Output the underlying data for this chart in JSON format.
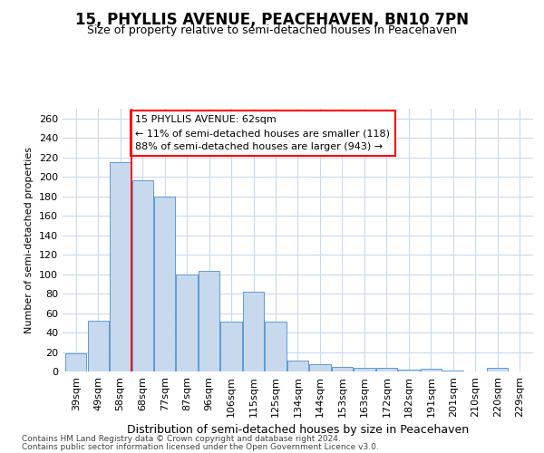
{
  "title": "15, PHYLLIS AVENUE, PEACEHAVEN, BN10 7PN",
  "subtitle": "Size of property relative to semi-detached houses in Peacehaven",
  "xlabel": "Distribution of semi-detached houses by size in Peacehaven",
  "ylabel": "Number of semi-detached properties",
  "footnote1": "Contains HM Land Registry data © Crown copyright and database right 2024.",
  "footnote2": "Contains public sector information licensed under the Open Government Licence v3.0.",
  "categories": [
    "39sqm",
    "49sqm",
    "58sqm",
    "68sqm",
    "77sqm",
    "87sqm",
    "96sqm",
    "106sqm",
    "115sqm",
    "125sqm",
    "134sqm",
    "144sqm",
    "153sqm",
    "163sqm",
    "172sqm",
    "182sqm",
    "191sqm",
    "201sqm",
    "210sqm",
    "220sqm",
    "229sqm"
  ],
  "values": [
    19,
    52,
    215,
    196,
    180,
    100,
    103,
    51,
    82,
    51,
    11,
    7,
    5,
    4,
    4,
    2,
    3,
    1,
    0,
    4,
    0
  ],
  "bar_color": "#c8d9ee",
  "bar_edge_color": "#5b9bd5",
  "grid_color": "#c8d9ee",
  "annotation_text1": "15 PHYLLIS AVENUE: 62sqm",
  "annotation_text2": "← 11% of semi-detached houses are smaller (118)",
  "annotation_text3": "88% of semi-detached houses are larger (943) →",
  "property_line_x": 2.5,
  "ylim": [
    0,
    270
  ],
  "yticks": [
    0,
    20,
    40,
    60,
    80,
    100,
    120,
    140,
    160,
    180,
    200,
    220,
    240,
    260
  ],
  "background_color": "#ffffff",
  "title_fontsize": 12,
  "subtitle_fontsize": 9,
  "xlabel_fontsize": 9,
  "ylabel_fontsize": 8,
  "tick_fontsize": 8,
  "footnote_fontsize": 6.5,
  "annotation_fontsize": 8
}
